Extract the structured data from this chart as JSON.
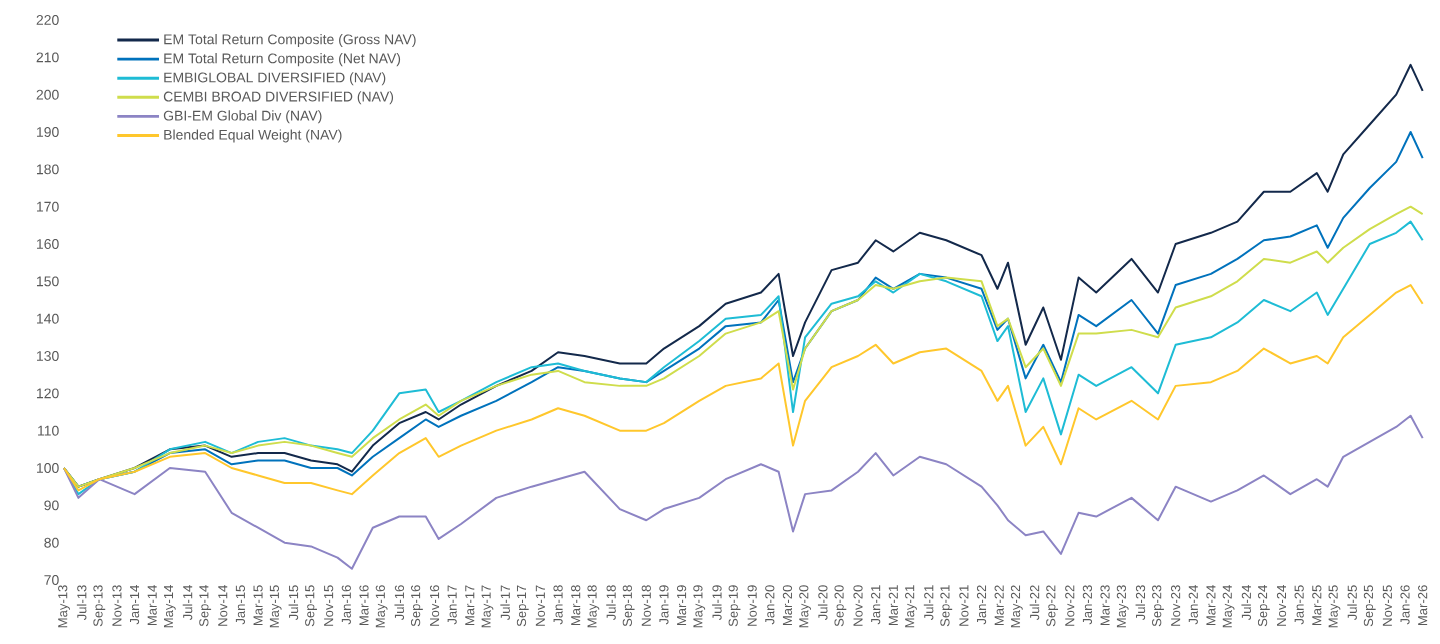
{
  "chart_data": {
    "type": "line",
    "x": [
      "2013-05",
      "2013-06-20",
      "2013-09",
      "2014-01",
      "2014-05",
      "2014-09",
      "2014-12",
      "2015-03",
      "2015-06",
      "2015-09",
      "2015-12",
      "2016-01-20",
      "2016-04",
      "2016-07",
      "2016-10",
      "2016-11-15",
      "2017-02",
      "2017-06",
      "2017-10",
      "2018-01",
      "2018-04",
      "2018-08",
      "2018-11",
      "2019-01",
      "2019-05",
      "2019-08",
      "2019-12",
      "2020-02",
      "2020-03-20",
      "2020-05",
      "2020-08",
      "2020-11",
      "2021-01",
      "2021-03",
      "2021-06",
      "2021-09",
      "2022-01",
      "2022-02-25",
      "2022-04",
      "2022-06",
      "2022-08",
      "2022-10",
      "2022-12",
      "2023-02",
      "2023-06",
      "2023-09",
      "2023-11",
      "2024-03",
      "2024-06",
      "2024-09",
      "2024-12",
      "2025-03",
      "2025-04-08",
      "2025-06",
      "2025-09",
      "2025-12",
      "2026-01-20",
      "2026-03"
    ],
    "series": [
      {
        "name": "EM Total Return Composite (Gross NAV)",
        "color": "#13294b",
        "values": [
          100,
          95,
          97,
          100,
          105,
          106,
          103,
          104,
          104,
          102,
          101,
          99,
          106,
          112,
          115,
          113,
          117,
          122,
          126,
          131,
          130,
          128,
          128,
          132,
          138,
          144,
          147,
          152,
          130,
          139,
          153,
          155,
          161,
          158,
          163,
          161,
          157,
          148,
          155,
          133,
          143,
          129,
          151,
          147,
          156,
          147,
          160,
          163,
          166,
          174,
          174,
          179,
          174,
          184,
          192,
          200,
          208,
          201
        ]
      },
      {
        "name": "EM Total Return Composite (Net NAV)",
        "color": "#0072bc",
        "values": [
          100,
          95,
          97,
          99,
          104,
          105,
          101,
          102,
          102,
          100,
          100,
          98,
          103,
          108,
          113,
          111,
          114,
          118,
          123,
          127,
          126,
          124,
          123,
          126,
          132,
          138,
          139,
          145,
          123,
          132,
          142,
          145,
          151,
          148,
          152,
          151,
          148,
          137,
          140,
          124,
          133,
          123,
          141,
          138,
          145,
          136,
          149,
          152,
          156,
          161,
          162,
          165,
          159,
          167,
          175,
          182,
          190,
          183
        ]
      },
      {
        "name": "EMBIGLOBAL DIVERSIFIED (NAV)",
        "color": "#1ebcd5",
        "values": [
          100,
          93,
          97,
          99,
          105,
          107,
          104,
          107,
          108,
          106,
          105,
          104,
          110,
          120,
          121,
          115,
          118,
          123,
          127,
          128,
          126,
          124,
          123,
          127,
          134,
          140,
          141,
          146,
          115,
          135,
          144,
          146,
          150,
          147,
          152,
          150,
          146,
          134,
          138,
          115,
          124,
          109,
          125,
          122,
          127,
          120,
          133,
          135,
          139,
          145,
          142,
          147,
          141,
          148,
          160,
          163,
          166,
          161
        ]
      },
      {
        "name": "CEMBI BROAD DIVERSIFIED (NAV)",
        "color": "#cfdd4c",
        "values": [
          100,
          95,
          97,
          100,
          104,
          106,
          104,
          106,
          107,
          106,
          104,
          103,
          108,
          113,
          117,
          114,
          118,
          122,
          125,
          126,
          123,
          122,
          122,
          124,
          130,
          136,
          139,
          142,
          121,
          132,
          142,
          145,
          149,
          148,
          150,
          151,
          150,
          138,
          140,
          127,
          132,
          122,
          136,
          136,
          137,
          135,
          143,
          146,
          150,
          156,
          155,
          158,
          155,
          159,
          164,
          168,
          170,
          168
        ]
      },
      {
        "name": "GBI-EM Global Div (NAV)",
        "color": "#8c84c4",
        "values": [
          100,
          92,
          97,
          93,
          100,
          99,
          88,
          84,
          80,
          79,
          76,
          73,
          84,
          87,
          87,
          81,
          85,
          92,
          95,
          97,
          99,
          89,
          86,
          89,
          92,
          97,
          101,
          99,
          83,
          93,
          94,
          99,
          104,
          98,
          103,
          101,
          95,
          90,
          86,
          82,
          83,
          77,
          88,
          87,
          92,
          86,
          95,
          91,
          94,
          98,
          93,
          97,
          95,
          103,
          107,
          111,
          114,
          108
        ]
      },
      {
        "name": "Blended Equal Weight (NAV)",
        "color": "#ffc72c",
        "values": [
          100,
          94,
          97,
          99,
          103,
          104,
          100,
          98,
          96,
          96,
          94,
          93,
          98,
          104,
          108,
          103,
          106,
          110,
          113,
          116,
          114,
          110,
          110,
          112,
          118,
          122,
          124,
          128,
          106,
          118,
          127,
          130,
          133,
          128,
          131,
          132,
          126,
          118,
          122,
          106,
          111,
          101,
          116,
          113,
          118,
          113,
          122,
          123,
          126,
          132,
          128,
          130,
          128,
          135,
          141,
          147,
          149,
          144
        ]
      }
    ],
    "xlim": [
      "2013-05",
      "2026-03"
    ],
    "xticks": [
      {
        "value": "2013-05",
        "label": "May-13"
      },
      {
        "value": "2013-07",
        "label": "Jul-13"
      },
      {
        "value": "2013-09",
        "label": "Sep-13"
      },
      {
        "value": "2013-11",
        "label": "Nov-13"
      },
      {
        "value": "2014-01",
        "label": "Jan-14"
      },
      {
        "value": "2014-03",
        "label": "Mar-14"
      },
      {
        "value": "2014-05",
        "label": "May-14"
      },
      {
        "value": "2014-07",
        "label": "Jul-14"
      },
      {
        "value": "2014-09",
        "label": "Sep-14"
      },
      {
        "value": "2014-11",
        "label": "Nov-14"
      },
      {
        "value": "2015-01",
        "label": "Jan-15"
      },
      {
        "value": "2015-03",
        "label": "Mar-15"
      },
      {
        "value": "2015-05",
        "label": "May-15"
      },
      {
        "value": "2015-07",
        "label": "Jul-15"
      },
      {
        "value": "2015-09",
        "label": "Sep-15"
      },
      {
        "value": "2015-11",
        "label": "Nov-15"
      },
      {
        "value": "2016-01",
        "label": "Jan-16"
      },
      {
        "value": "2016-03",
        "label": "Mar-16"
      },
      {
        "value": "2016-05",
        "label": "May-16"
      },
      {
        "value": "2016-07",
        "label": "Jul-16"
      },
      {
        "value": "2016-09",
        "label": "Sep-16"
      },
      {
        "value": "2016-11",
        "label": "Nov-16"
      },
      {
        "value": "2017-01",
        "label": "Jan-17"
      },
      {
        "value": "2017-03",
        "label": "Mar-17"
      },
      {
        "value": "2017-05",
        "label": "May-17"
      },
      {
        "value": "2017-07",
        "label": "Jul-17"
      },
      {
        "value": "2017-09",
        "label": "Sep-17"
      },
      {
        "value": "2017-11",
        "label": "Nov-17"
      },
      {
        "value": "2018-01",
        "label": "Jan-18"
      },
      {
        "value": "2018-03",
        "label": "Mar-18"
      },
      {
        "value": "2018-05",
        "label": "May-18"
      },
      {
        "value": "2018-07",
        "label": "Jul-18"
      },
      {
        "value": "2018-09",
        "label": "Sep-18"
      },
      {
        "value": "2018-11",
        "label": "Nov-18"
      },
      {
        "value": "2019-01",
        "label": "Jan-19"
      },
      {
        "value": "2019-03",
        "label": "Mar-19"
      },
      {
        "value": "2019-05",
        "label": "May-19"
      },
      {
        "value": "2019-07",
        "label": "Jul-19"
      },
      {
        "value": "2019-09",
        "label": "Sep-19"
      },
      {
        "value": "2019-11",
        "label": "Nov-19"
      },
      {
        "value": "2020-01",
        "label": "Jan-20"
      },
      {
        "value": "2020-03",
        "label": "Mar-20"
      },
      {
        "value": "2020-05",
        "label": "May-20"
      },
      {
        "value": "2020-07",
        "label": "Jul-20"
      },
      {
        "value": "2020-09",
        "label": "Sep-20"
      },
      {
        "value": "2020-11",
        "label": "Nov-20"
      },
      {
        "value": "2021-01",
        "label": "Jan-21"
      },
      {
        "value": "2021-03",
        "label": "Mar-21"
      },
      {
        "value": "2021-05",
        "label": "May-21"
      },
      {
        "value": "2021-07",
        "label": "Jul-21"
      },
      {
        "value": "2021-09",
        "label": "Sep-21"
      },
      {
        "value": "2021-11",
        "label": "Nov-21"
      },
      {
        "value": "2022-01",
        "label": "Jan-22"
      },
      {
        "value": "2022-03",
        "label": "Mar-22"
      },
      {
        "value": "2022-05",
        "label": "May-22"
      },
      {
        "value": "2022-07",
        "label": "Jul-22"
      },
      {
        "value": "2022-09",
        "label": "Sep-22"
      },
      {
        "value": "2022-11",
        "label": "Nov-22"
      },
      {
        "value": "2023-01",
        "label": "Jan-23"
      },
      {
        "value": "2023-03",
        "label": "Mar-23"
      },
      {
        "value": "2023-05",
        "label": "May-23"
      },
      {
        "value": "2023-07",
        "label": "Jul-23"
      },
      {
        "value": "2023-09",
        "label": "Sep-23"
      },
      {
        "value": "2023-11",
        "label": "Nov-23"
      },
      {
        "value": "2024-01",
        "label": "Jan-24"
      },
      {
        "value": "2024-03",
        "label": "Mar-24"
      },
      {
        "value": "2024-05",
        "label": "May-24"
      },
      {
        "value": "2024-07",
        "label": "Jul-24"
      },
      {
        "value": "2024-09",
        "label": "Sep-24"
      },
      {
        "value": "2024-11",
        "label": "Nov-24"
      },
      {
        "value": "2025-01",
        "label": "Jan-25"
      },
      {
        "value": "2025-03",
        "label": "Mar-25"
      },
      {
        "value": "2025-05",
        "label": "May-25"
      },
      {
        "value": "2025-07",
        "label": "Jul-25"
      },
      {
        "value": "2025-09",
        "label": "Sep-25"
      },
      {
        "value": "2025-11",
        "label": "Nov-25"
      },
      {
        "value": "2026-01",
        "label": "Jan-26"
      },
      {
        "value": "2026-03",
        "label": "Mar-26"
      }
    ],
    "ylim": [
      70,
      220
    ],
    "yticks": [
      70,
      80,
      90,
      100,
      110,
      120,
      130,
      140,
      150,
      160,
      170,
      180,
      190,
      200,
      210,
      220
    ],
    "legend": "top left"
  }
}
